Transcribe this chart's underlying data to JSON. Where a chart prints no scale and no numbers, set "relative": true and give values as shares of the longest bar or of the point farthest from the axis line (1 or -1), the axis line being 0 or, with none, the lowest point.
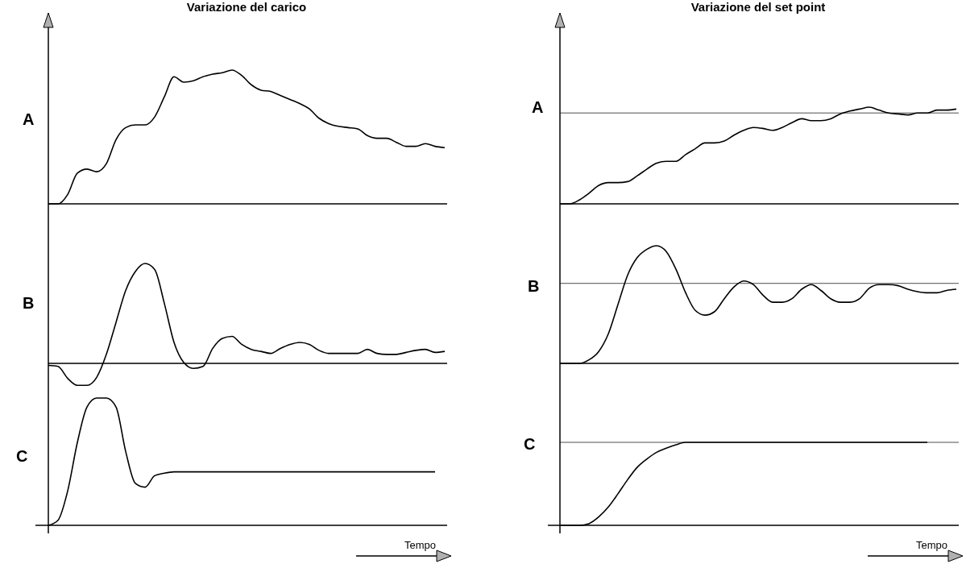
{
  "chart_data": [
    {
      "type": "line",
      "title": "Variazione del carico",
      "ylabel": "A",
      "relative": true,
      "categories": [
        null,
        null,
        null,
        null,
        null,
        null,
        null,
        null,
        null,
        null,
        null,
        null,
        null,
        null,
        null,
        null,
        null,
        null,
        null,
        null,
        null,
        null,
        null,
        null,
        null,
        null,
        null,
        null,
        null,
        null,
        null,
        null,
        null,
        null,
        null,
        null,
        null,
        null,
        null,
        null,
        null,
        null
      ],
      "series": [
        {
          "color": "#000000",
          "values": [
            0,
            0,
            0.07,
            0.23,
            0.26,
            0.24,
            0.3,
            0.48,
            0.57,
            0.59,
            0.59,
            0.65,
            0.8,
            0.95,
            0.91,
            0.92,
            0.95,
            0.97,
            0.98,
            1.0,
            0.96,
            0.89,
            0.85,
            0.84,
            0.81,
            0.78,
            0.75,
            0.71,
            0.64,
            0.6,
            0.58,
            0.57,
            0.56,
            0.51,
            0.49,
            0.49,
            0.46,
            0.43,
            0.43,
            0.45,
            0.43,
            0.42
          ]
        }
      ]
    },
    {
      "type": "line",
      "ylabel": "B",
      "relative": true,
      "categories": [
        null,
        null,
        null,
        null,
        null,
        null,
        null,
        null,
        null,
        null,
        null,
        null,
        null,
        null,
        null,
        null,
        null,
        null,
        null,
        null,
        null,
        null,
        null,
        null,
        null,
        null,
        null,
        null,
        null,
        null,
        null,
        null,
        null,
        null,
        null,
        null,
        null,
        null,
        null,
        null,
        null,
        null
      ],
      "series": [
        {
          "color": "#000000",
          "values": [
            -0.02,
            -0.03,
            -0.15,
            -0.22,
            -0.22,
            -0.14,
            0.09,
            0.41,
            0.73,
            0.92,
            1.0,
            0.94,
            0.6,
            0.21,
            0.01,
            -0.05,
            -0.03,
            0.15,
            0.25,
            0.27,
            0.19,
            0.14,
            0.12,
            0.1,
            0.15,
            0.19,
            0.21,
            0.19,
            0.13,
            0.1,
            0.1,
            0.1,
            0.1,
            0.14,
            0.1,
            0.09,
            0.09,
            0.11,
            0.13,
            0.14,
            0.11,
            0.12
          ]
        }
      ]
    },
    {
      "type": "line",
      "ylabel": "C",
      "xlabel": "Tempo",
      "relative": true,
      "categories": [
        null,
        null,
        null,
        null,
        null,
        null,
        null,
        null,
        null,
        null,
        null,
        null,
        null,
        null,
        null,
        null,
        null,
        null,
        null,
        null,
        null,
        null,
        null,
        null,
        null,
        null,
        null,
        null,
        null,
        null,
        null,
        null,
        null,
        null,
        null,
        null,
        null,
        null,
        null,
        null,
        null,
        null
      ],
      "series": [
        {
          "color": "#000000",
          "values": [
            0,
            0.04,
            0.27,
            0.65,
            0.93,
            1.0,
            1.0,
            0.93,
            0.58,
            0.33,
            0.3,
            0.39,
            0.41,
            0.42,
            0.42,
            0.42,
            0.42,
            0.42,
            0.42,
            0.42,
            0.42,
            0.42,
            0.42,
            0.42,
            0.42,
            0.42,
            0.42,
            0.42,
            0.42,
            0.42,
            0.42,
            0.42,
            0.42,
            0.42,
            0.42,
            0.42,
            0.42,
            0.42,
            0.42,
            0.42,
            0.42,
            null
          ]
        }
      ]
    },
    {
      "type": "line",
      "title": "Variazione del set point",
      "ylabel": "A",
      "relative": true,
      "categories": [
        null,
        null,
        null,
        null,
        null,
        null,
        null,
        null,
        null,
        null,
        null,
        null,
        null,
        null,
        null,
        null,
        null,
        null,
        null,
        null,
        null,
        null,
        null,
        null,
        null,
        null,
        null,
        null,
        null,
        null,
        null,
        null,
        null,
        null,
        null,
        null,
        null,
        null,
        null,
        null,
        null,
        null
      ],
      "series": [
        {
          "color": "#000000",
          "values": [
            0,
            0,
            0.04,
            0.11,
            0.19,
            0.22,
            0.22,
            0.23,
            0.29,
            0.36,
            0.42,
            0.44,
            0.44,
            0.51,
            0.57,
            0.63,
            0.63,
            0.65,
            0.71,
            0.76,
            0.79,
            0.78,
            0.76,
            0.79,
            0.84,
            0.88,
            0.86,
            0.86,
            0.88,
            0.93,
            0.96,
            0.98,
            1.0,
            0.97,
            0.94,
            0.93,
            0.92,
            0.94,
            0.94,
            0.97,
            0.97,
            0.98
          ]
        }
      ],
      "ref_lines": [
        {
          "axis": "y",
          "value": 0.94
        }
      ]
    },
    {
      "type": "line",
      "ylabel": "B",
      "relative": true,
      "categories": [
        null,
        null,
        null,
        null,
        null,
        null,
        null,
        null,
        null,
        null,
        null,
        null,
        null,
        null,
        null,
        null,
        null,
        null,
        null,
        null,
        null,
        null,
        null,
        null,
        null,
        null,
        null,
        null,
        null,
        null,
        null,
        null,
        null,
        null,
        null,
        null,
        null,
        null,
        null,
        null,
        null,
        null
      ],
      "series": [
        {
          "color": "#000000",
          "values": [
            0,
            0,
            0,
            0.03,
            0.1,
            0.25,
            0.5,
            0.75,
            0.9,
            0.97,
            1.0,
            0.95,
            0.8,
            0.6,
            0.45,
            0.41,
            0.44,
            0.55,
            0.65,
            0.7,
            0.67,
            0.58,
            0.52,
            0.52,
            0.55,
            0.63,
            0.67,
            0.62,
            0.55,
            0.52,
            0.52,
            0.55,
            0.64,
            0.67,
            0.67,
            0.66,
            0.63,
            0.61,
            0.6,
            0.6,
            0.62,
            0.63
          ]
        }
      ],
      "ref_lines": [
        {
          "axis": "y",
          "value": 0.68
        }
      ]
    },
    {
      "type": "line",
      "ylabel": "C",
      "xlabel": "Tempo",
      "relative": true,
      "categories": [
        null,
        null,
        null,
        null,
        null,
        null,
        null,
        null,
        null,
        null,
        null,
        null,
        null,
        null,
        null,
        null,
        null,
        null,
        null,
        null,
        null,
        null,
        null,
        null,
        null,
        null,
        null,
        null,
        null,
        null,
        null,
        null,
        null,
        null,
        null,
        null,
        null,
        null,
        null,
        null,
        null,
        null
      ],
      "series": [
        {
          "color": "#000000",
          "values": [
            0,
            0,
            0,
            0.02,
            0.1,
            0.22,
            0.38,
            0.55,
            0.7,
            0.8,
            0.88,
            0.93,
            0.97,
            1.0,
            1.0,
            1.0,
            1.0,
            1.0,
            1.0,
            1.0,
            1.0,
            1.0,
            1.0,
            1.0,
            1.0,
            1.0,
            1.0,
            1.0,
            1.0,
            1.0,
            1.0,
            1.0,
            1.0,
            1.0,
            1.0,
            1.0,
            1.0,
            1.0,
            1.0,
            null,
            null,
            null
          ]
        }
      ],
      "ref_lines": [
        {
          "axis": "y",
          "value": 1.0
        }
      ]
    }
  ]
}
